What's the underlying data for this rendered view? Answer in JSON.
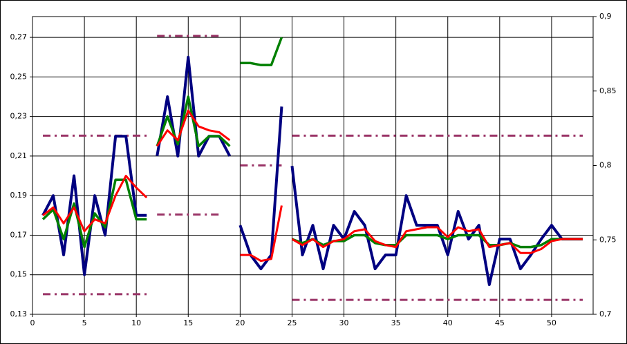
{
  "chart_data": {
    "type": "line",
    "xlim": [
      0,
      54
    ],
    "xticks": [
      0,
      5,
      10,
      15,
      20,
      25,
      30,
      35,
      40,
      45,
      50
    ],
    "ylim": [
      0.13,
      0.2805
    ],
    "yticks": [
      {
        "value": 0.13,
        "label": "0,13"
      },
      {
        "value": 0.15,
        "label": "0,15"
      },
      {
        "value": 0.17,
        "label": "0,17"
      },
      {
        "value": 0.19,
        "label": "0,19"
      },
      {
        "value": 0.21,
        "label": "0,21"
      },
      {
        "value": 0.23,
        "label": "0,23"
      },
      {
        "value": 0.25,
        "label": "0,25"
      },
      {
        "value": 0.27,
        "label": "0,27"
      }
    ],
    "y2lim": [
      0.7,
      0.9
    ],
    "y2ticks": [
      {
        "value": 0.7,
        "label": "0,7"
      },
      {
        "value": 0.75,
        "label": "0,75"
      },
      {
        "value": 0.8,
        "label": "0,8"
      },
      {
        "value": 0.85,
        "label": "0,85"
      },
      {
        "value": 0.9,
        "label": "0,9"
      }
    ],
    "grid": true,
    "series": [
      {
        "color": "#993366",
        "axis": "y2",
        "dash": true,
        "x": [
          1,
          11
        ],
        "values": [
          0.82,
          0.82
        ]
      },
      {
        "color": "#993366",
        "axis": "y2",
        "dash": true,
        "x": [
          1,
          11
        ],
        "values": [
          0.7135,
          0.7135
        ]
      },
      {
        "color": "#993366",
        "axis": "y2",
        "dash": true,
        "x": [
          12,
          18
        ],
        "values": [
          0.887,
          0.887
        ]
      },
      {
        "color": "#993366",
        "axis": "y2",
        "dash": true,
        "x": [
          12,
          18
        ],
        "values": [
          0.767,
          0.767
        ]
      },
      {
        "color": "#993366",
        "axis": "y2",
        "dash": true,
        "x": [
          20,
          24
        ],
        "values": [
          0.8,
          0.8
        ]
      },
      {
        "color": "#993366",
        "axis": "y2",
        "dash": true,
        "x": [
          25,
          53
        ],
        "values": [
          0.82,
          0.82
        ]
      },
      {
        "color": "#993366",
        "axis": "y2",
        "dash": true,
        "x": [
          25,
          53
        ],
        "values": [
          0.7097,
          0.7097
        ]
      },
      {
        "color": "#000080",
        "width": 4,
        "x": [
          1,
          2,
          3,
          4,
          5,
          6,
          7,
          8,
          9,
          10,
          11
        ],
        "values": [
          0.18,
          0.19,
          0.16,
          0.2,
          0.15,
          0.19,
          0.17,
          0.22,
          0.22,
          0.18,
          0.18
        ]
      },
      {
        "color": "#000080",
        "width": 4,
        "x": [
          12,
          13,
          14,
          15,
          16,
          17,
          18,
          19
        ],
        "values": [
          0.21,
          0.24,
          0.21,
          0.26,
          0.21,
          0.22,
          0.22,
          0.21
        ]
      },
      {
        "color": "#000080",
        "width": 4,
        "x": [
          20,
          21,
          22,
          23,
          24
        ],
        "values": [
          0.175,
          0.16,
          0.153,
          0.16,
          0.235
        ]
      },
      {
        "color": "#000080",
        "width": 4,
        "x": [
          25,
          26,
          27,
          28,
          29,
          30,
          31,
          32,
          33,
          34,
          35,
          36,
          37,
          38,
          39,
          40,
          41,
          42,
          43,
          44,
          45,
          46,
          47,
          48,
          49,
          50,
          51,
          52,
          53
        ],
        "values": [
          0.205,
          0.16,
          0.175,
          0.153,
          0.175,
          0.168,
          0.182,
          0.175,
          0.153,
          0.16,
          0.16,
          0.19,
          0.175,
          0.175,
          0.175,
          0.16,
          0.182,
          0.168,
          0.175,
          0.145,
          0.168,
          0.168,
          0.153,
          0.16,
          0.168,
          0.175,
          0.168,
          0.168,
          0.168
        ]
      },
      {
        "color": "#008000",
        "width": 3.5,
        "x": [
          1,
          2,
          3,
          4,
          5,
          6,
          7,
          8,
          9,
          10,
          11
        ],
        "values": [
          0.178,
          0.183,
          0.168,
          0.186,
          0.164,
          0.181,
          0.174,
          0.198,
          0.198,
          0.178,
          0.178
        ]
      },
      {
        "color": "#008000",
        "width": 3.5,
        "x": [
          12,
          13,
          14,
          15,
          16,
          17,
          18,
          19
        ],
        "values": [
          0.215,
          0.23,
          0.216,
          0.24,
          0.215,
          0.22,
          0.22,
          0.215
        ]
      },
      {
        "color": "#008000",
        "width": 3.5,
        "x": [
          20,
          21,
          22,
          23,
          24
        ],
        "values": [
          0.257,
          0.257,
          0.256,
          0.256,
          0.27
        ]
      },
      {
        "color": "#008000",
        "width": 3.5,
        "x": [
          25,
          26,
          27,
          28,
          29,
          30,
          31,
          32,
          33,
          34,
          35,
          36,
          37,
          38,
          39,
          40,
          41,
          42,
          43,
          44,
          45,
          46,
          47,
          48,
          49,
          50,
          51,
          52,
          53
        ],
        "values": [
          0.168,
          0.166,
          0.168,
          0.165,
          0.167,
          0.167,
          0.17,
          0.17,
          0.166,
          0.165,
          0.165,
          0.17,
          0.17,
          0.17,
          0.17,
          0.168,
          0.17,
          0.17,
          0.17,
          0.165,
          0.165,
          0.166,
          0.164,
          0.164,
          0.165,
          0.168,
          0.168,
          0.168,
          0.168
        ]
      },
      {
        "color": "#ff0000",
        "width": 3,
        "x": [
          1,
          2,
          3,
          4,
          5,
          6,
          7,
          8,
          9,
          10,
          11
        ],
        "values": [
          0.18,
          0.184,
          0.176,
          0.184,
          0.172,
          0.178,
          0.176,
          0.19,
          0.2,
          0.194,
          0.189
        ]
      },
      {
        "color": "#ff0000",
        "width": 3,
        "x": [
          12,
          13,
          14,
          15,
          16,
          17,
          18,
          19
        ],
        "values": [
          0.215,
          0.223,
          0.218,
          0.233,
          0.225,
          0.223,
          0.222,
          0.218
        ]
      },
      {
        "color": "#ff0000",
        "width": 3,
        "x": [
          20,
          21,
          22,
          23,
          24
        ],
        "values": [
          0.16,
          0.16,
          0.157,
          0.158,
          0.185
        ]
      },
      {
        "color": "#ff0000",
        "width": 3,
        "x": [
          25,
          26,
          27,
          28,
          29,
          30,
          31,
          32,
          33,
          34,
          35,
          36,
          37,
          38,
          39,
          40,
          41,
          42,
          43,
          44,
          45,
          46,
          47,
          48,
          49,
          50,
          51,
          52,
          53
        ],
        "values": [
          0.168,
          0.165,
          0.168,
          0.164,
          0.167,
          0.168,
          0.172,
          0.173,
          0.167,
          0.165,
          0.164,
          0.172,
          0.173,
          0.174,
          0.174,
          0.169,
          0.174,
          0.172,
          0.173,
          0.164,
          0.165,
          0.166,
          0.161,
          0.161,
          0.163,
          0.167,
          0.168,
          0.168,
          0.168
        ]
      }
    ]
  }
}
